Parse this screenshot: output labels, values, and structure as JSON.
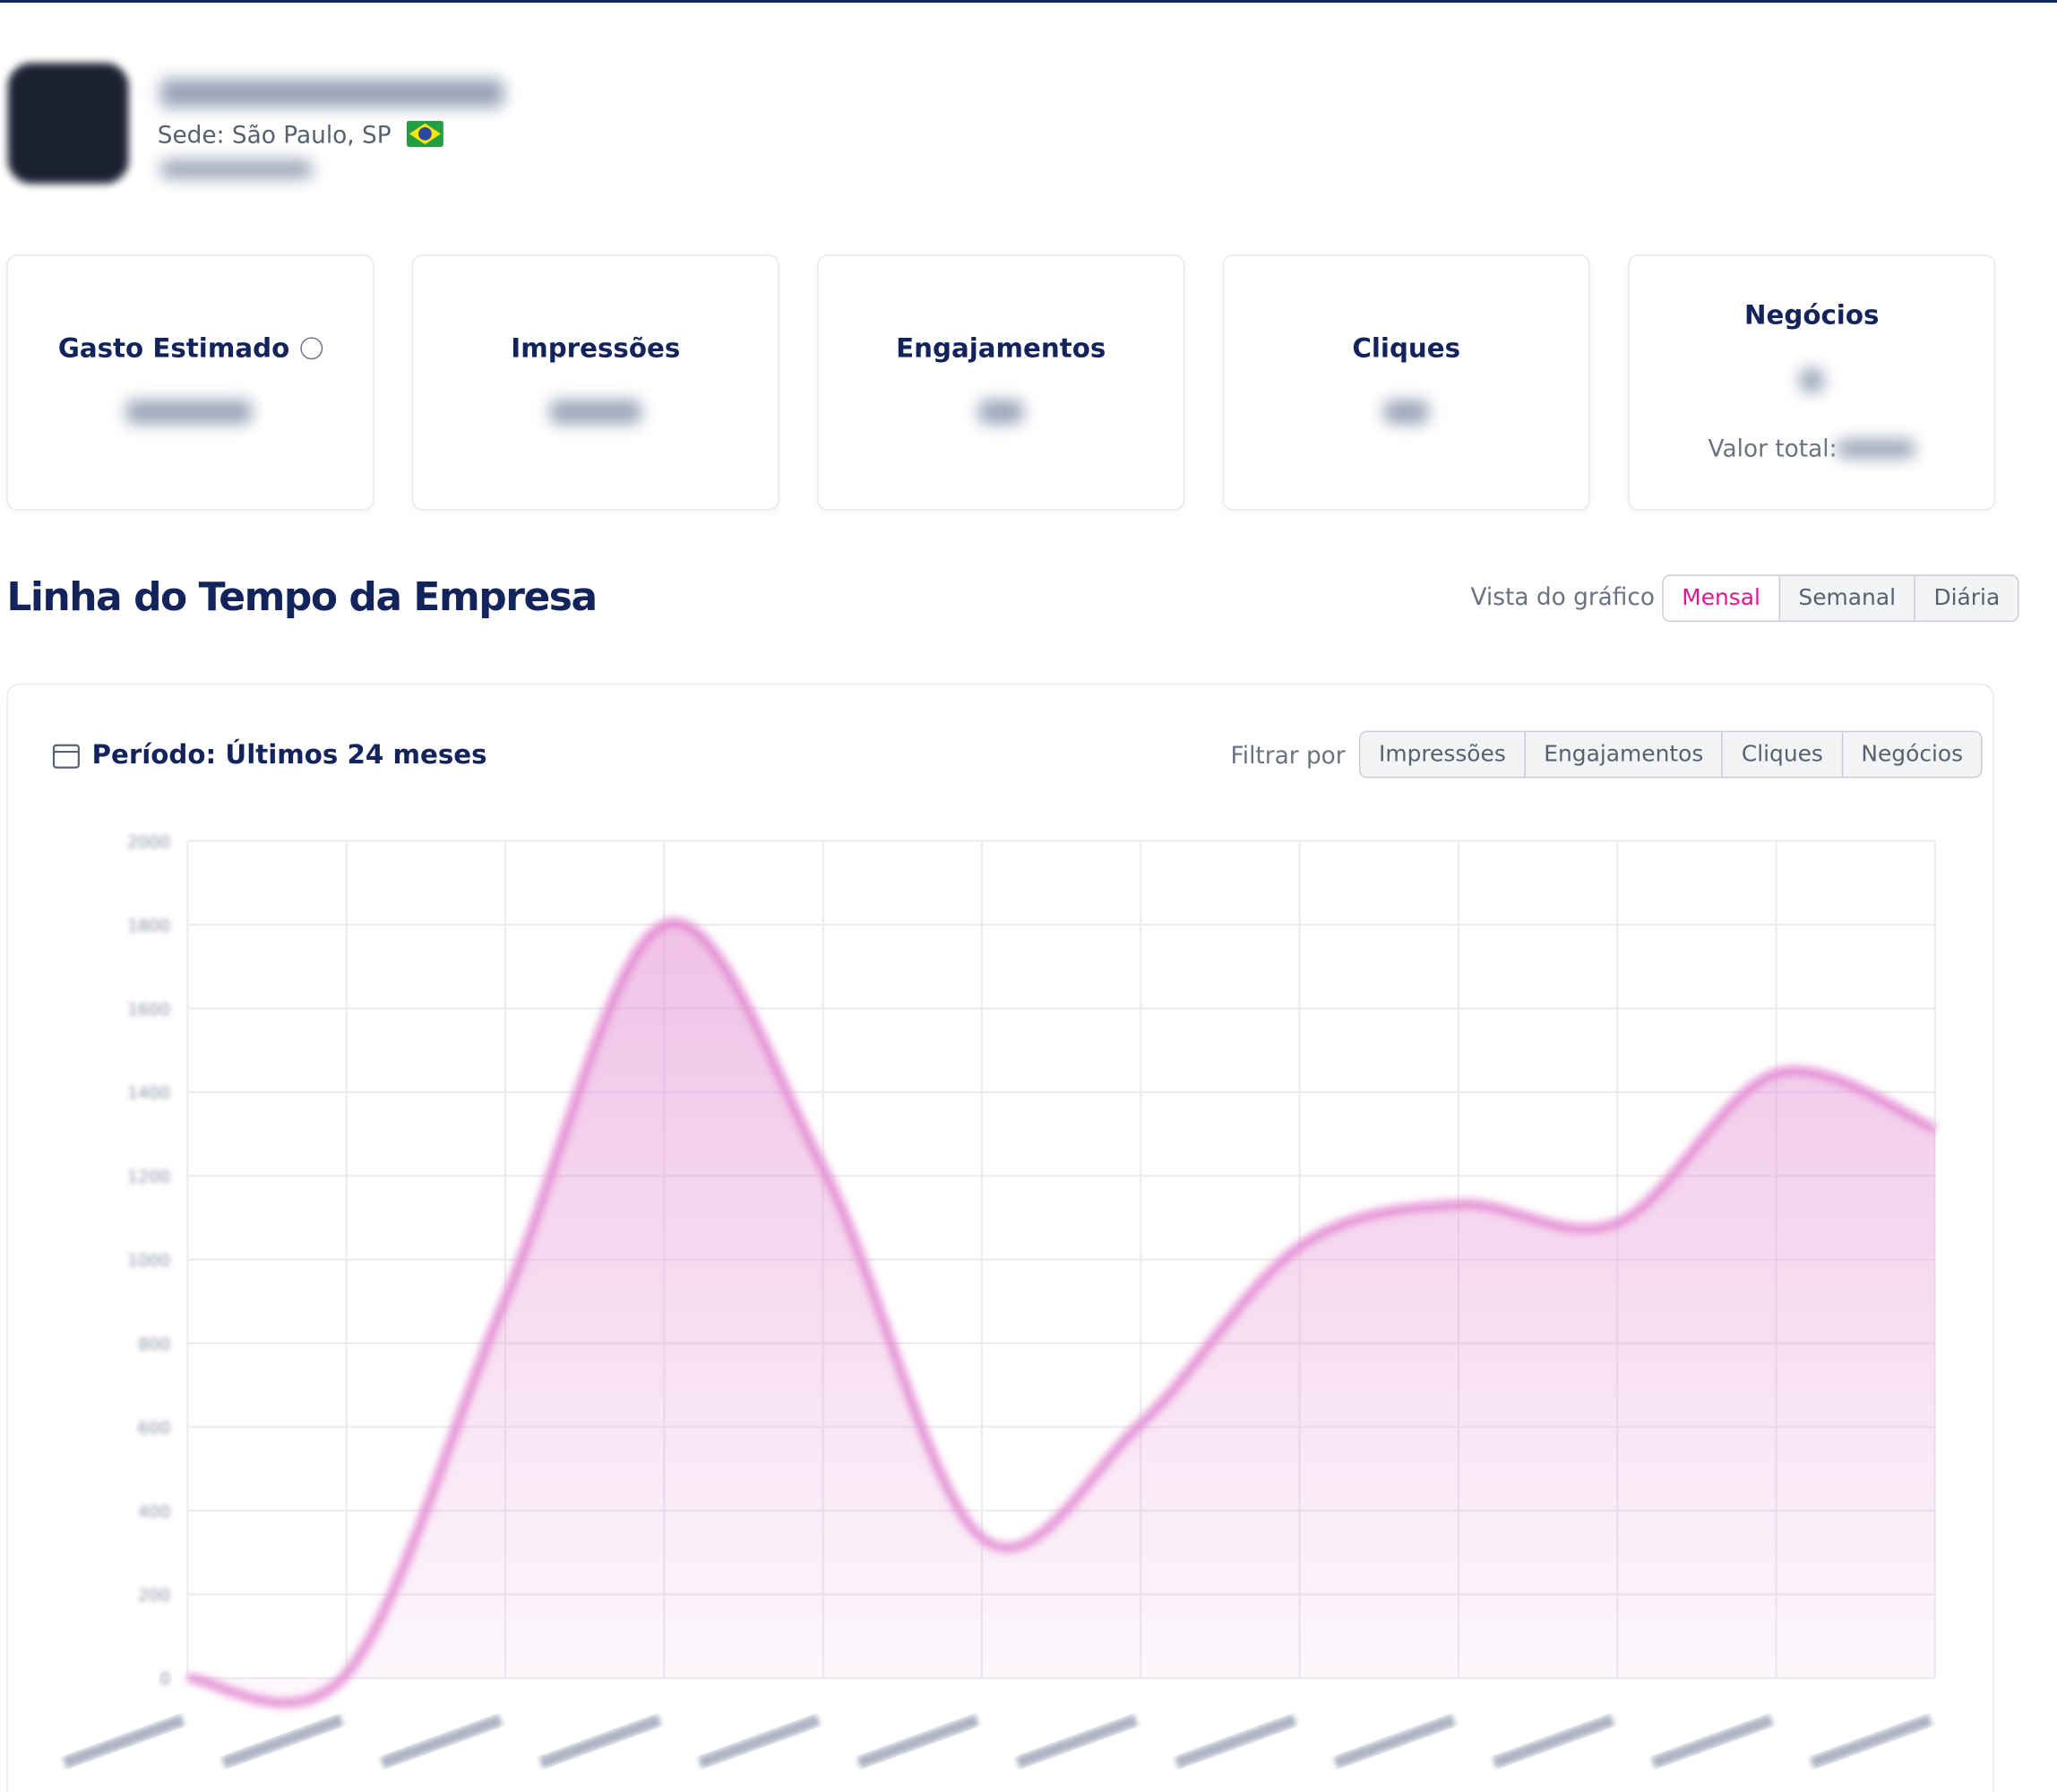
{
  "header": {
    "location": "Sede: São Paulo, SP"
  },
  "cards": [
    {
      "title": "Gasto Estimado"
    },
    {
      "title": "Impressões"
    },
    {
      "title": "Engajamentos"
    },
    {
      "title": "Cliques"
    },
    {
      "title": "Negócios",
      "sub": "Valor total:"
    }
  ],
  "timeline": {
    "title": "Linha do Tempo da Empresa",
    "view_label": "Vista do gráfico",
    "views": [
      "Mensal",
      "Semanal",
      "Diária"
    ],
    "period": "Período: Últimos 24 meses",
    "filter_label": "Filtrar por",
    "filters": [
      "Impressões",
      "Engajamentos",
      "Cliques",
      "Negócios"
    ]
  },
  "chart_data": {
    "type": "area",
    "categories": [
      null,
      null,
      null,
      null,
      null,
      null,
      null,
      null,
      null,
      null,
      null,
      null
    ],
    "series": [
      {
        "color": "#e48fd3",
        "values": [
          0,
          10,
          906,
          1800,
          1220,
          335,
          608,
          1031,
          1132,
          1088,
          1445,
          1313
        ]
      }
    ],
    "ylim": [
      0,
      2000
    ],
    "yticks": [
      0,
      200,
      400,
      600,
      800,
      1000,
      1200,
      1400,
      1600,
      1800,
      2000
    ],
    "grid": true
  }
}
